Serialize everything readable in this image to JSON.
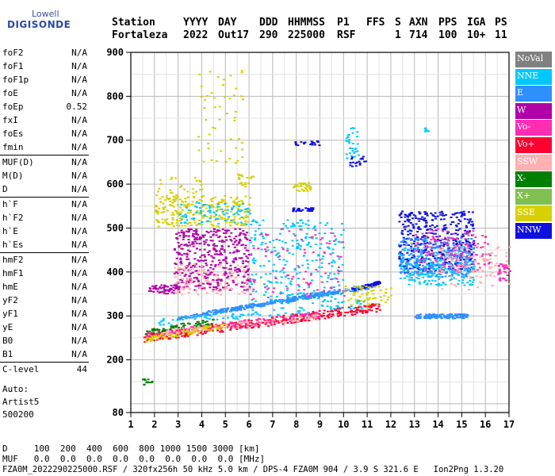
{
  "logo": {
    "top": "Lowell",
    "main": "DIGISONDE"
  },
  "header": {
    "labels": [
      "Station",
      "YYYY",
      "DAY",
      "DDD",
      "HHMMSS",
      "P1",
      "FFS",
      "S",
      "AXN",
      "PPS",
      "IGA",
      "PS"
    ],
    "values": [
      "Fortaleza",
      "2022",
      "Out17",
      "290",
      "225000",
      "RSF",
      "",
      "1",
      "714",
      "100",
      "10+",
      "11"
    ]
  },
  "params": [
    {
      "group": [
        {
          "name": "foF2",
          "value": "N/A"
        },
        {
          "name": "foF1",
          "value": "N/A"
        },
        {
          "name": "foF1p",
          "value": "N/A"
        },
        {
          "name": "foE",
          "value": "N/A"
        },
        {
          "name": "foEp",
          "value": "0.52"
        },
        {
          "name": "fxI",
          "value": "N/A"
        },
        {
          "name": "foEs",
          "value": "N/A"
        },
        {
          "name": "fmin",
          "value": "N/A"
        }
      ]
    },
    {
      "group": [
        {
          "name": "MUF(D)",
          "value": "N/A"
        },
        {
          "name": "M(D)",
          "value": "N/A"
        },
        {
          "name": "D",
          "value": "N/A"
        }
      ]
    },
    {
      "group": [
        {
          "name": "h`F",
          "value": "N/A"
        },
        {
          "name": "h`F2",
          "value": "N/A"
        },
        {
          "name": "h`E",
          "value": "N/A"
        },
        {
          "name": "h`Es",
          "value": "N/A"
        }
      ]
    },
    {
      "group": [
        {
          "name": "hmF2",
          "value": "N/A"
        },
        {
          "name": "hmF1",
          "value": "N/A"
        },
        {
          "name": "hmE",
          "value": "N/A"
        },
        {
          "name": "yF2",
          "value": "N/A"
        },
        {
          "name": "yF1",
          "value": "N/A"
        },
        {
          "name": "yE",
          "value": "N/A"
        },
        {
          "name": "B0",
          "value": "N/A"
        },
        {
          "name": "B1",
          "value": "N/A"
        }
      ]
    },
    {
      "group": [
        {
          "name": "C-level",
          "value": "44"
        }
      ]
    }
  ],
  "auto": {
    "line1": "Auto:",
    "line2": "Artist5",
    "line3": "500200"
  },
  "legend": [
    {
      "label": "NoVal",
      "color": "#808080"
    },
    {
      "label": "NNE",
      "color": "#00c8ff"
    },
    {
      "label": "E",
      "color": "#2f8fff"
    },
    {
      "label": "W",
      "color": "#b000a8"
    },
    {
      "label": "Vo-",
      "color": "#ff2db4"
    },
    {
      "label": "Vo+",
      "color": "#ff0030"
    },
    {
      "label": "SSW",
      "color": "#ffb0b0"
    },
    {
      "label": "X-",
      "color": "#008000"
    },
    {
      "label": "X+",
      "color": "#80c050"
    },
    {
      "label": "SSE",
      "color": "#d8d000"
    },
    {
      "label": "NNW",
      "color": "#1010e0"
    }
  ],
  "footer": {
    "line1": "D     100  200  400  600  800 1000 1500 3000 [km]",
    "line2": "MUF   0.0  0.0  0.0  0.0  0.0  0.0  0.0  0.0 [MHz]",
    "line3": "FZA0M_2022290225000.RSF / 320fx256h 50 kHz 5.0 km / DPS-4 FZA0M 904 / 3.9 S 321.6 E   Ion2Png 1.3.20"
  },
  "chart_data": {
    "type": "scatter",
    "xlabel": "",
    "ylabel": "",
    "xlim": [
      1,
      17
    ],
    "ylim": [
      80,
      900
    ],
    "x_ticks": [
      1,
      2,
      3,
      4,
      5,
      6,
      7,
      8,
      9,
      10,
      11,
      12,
      13,
      14,
      15,
      16,
      17
    ],
    "y_ticks": [
      80,
      200,
      300,
      400,
      500,
      600,
      700,
      800,
      900
    ],
    "grid": true,
    "clusters": [
      {
        "series": "E",
        "x": [
          2.9,
          11.2
        ],
        "y": [
          295,
          368
        ],
        "thick": 7,
        "n": 260
      },
      {
        "series": "E",
        "x": [
          4.0,
          11.2
        ],
        "y": [
          308,
          372
        ],
        "thick": 7,
        "n": 200
      },
      {
        "series": "Vo+",
        "x": [
          1.5,
          11.5
        ],
        "y": [
          252,
          322
        ],
        "thick": 20,
        "n": 380
      },
      {
        "series": "Vo-",
        "x": [
          1.5,
          9.0
        ],
        "y": [
          258,
          305
        ],
        "thick": 16,
        "n": 140
      },
      {
        "series": "X-",
        "x": [
          1.6,
          4.5
        ],
        "y": [
          265,
          290
        ],
        "thick": 12,
        "n": 60
      },
      {
        "series": "SSE",
        "x": [
          1.6,
          5.0
        ],
        "y": [
          248,
          280
        ],
        "thick": 12,
        "n": 90
      },
      {
        "series": "SSW",
        "x": [
          2.0,
          9.0
        ],
        "y": [
          262,
          300
        ],
        "thick": 12,
        "n": 80
      },
      {
        "series": "NNW",
        "x": [
          10.3,
          11.5
        ],
        "y": [
          360,
          378
        ],
        "thick": 8,
        "n": 60
      },
      {
        "series": "NNE",
        "x": [
          2.0,
          11.0
        ],
        "y": [
          285,
          330
        ],
        "thick": 20,
        "n": 90
      },
      {
        "series": "W",
        "x": [
          2.8,
          6.0
        ],
        "y": [
          360,
          500
        ],
        "thick": 0,
        "n": 420
      },
      {
        "series": "W",
        "x": [
          1.7,
          3.0
        ],
        "y": [
          352,
          372
        ],
        "thick": 0,
        "n": 60
      },
      {
        "series": "SSW",
        "x": [
          2.8,
          6.0
        ],
        "y": [
          350,
          420
        ],
        "thick": 0,
        "n": 120
      },
      {
        "series": "SSE",
        "x": [
          2.0,
          6.0
        ],
        "y": [
          505,
          575
        ],
        "thick": 0,
        "n": 240
      },
      {
        "series": "NNE",
        "x": [
          3.0,
          6.0
        ],
        "y": [
          510,
          560
        ],
        "thick": 0,
        "n": 80
      },
      {
        "series": "SSE",
        "x": [
          7.8,
          8.6
        ],
        "y": [
          585,
          605
        ],
        "thick": 0,
        "n": 30
      },
      {
        "series": "NNW",
        "x": [
          7.8,
          8.7
        ],
        "y": [
          540,
          548
        ],
        "thick": 0,
        "n": 30
      },
      {
        "series": "NNE",
        "x": [
          6.0,
          10.0
        ],
        "y": [
          330,
          520
        ],
        "thick": 0,
        "n": 260
      },
      {
        "series": "Vo-",
        "x": [
          6.0,
          10.0
        ],
        "y": [
          340,
          500
        ],
        "thick": 0,
        "n": 90
      },
      {
        "series": "NNW",
        "x": [
          12.3,
          15.5
        ],
        "y": [
          400,
          540
        ],
        "thick": 0,
        "n": 420
      },
      {
        "series": "E",
        "x": [
          12.3,
          15.5
        ],
        "y": [
          390,
          480
        ],
        "thick": 0,
        "n": 260
      },
      {
        "series": "NNE",
        "x": [
          12.3,
          15.5
        ],
        "y": [
          370,
          460
        ],
        "thick": 0,
        "n": 200
      },
      {
        "series": "Vo-",
        "x": [
          13.0,
          16.2
        ],
        "y": [
          400,
          500
        ],
        "thick": 0,
        "n": 140
      },
      {
        "series": "SSW",
        "x": [
          14.0,
          17.0
        ],
        "y": [
          360,
          460
        ],
        "thick": 0,
        "n": 100
      },
      {
        "series": "E",
        "x": [
          13.0,
          15.2
        ],
        "y": [
          296,
          306
        ],
        "thick": 0,
        "n": 140
      },
      {
        "series": "Vo-",
        "x": [
          16.5,
          17.0
        ],
        "y": [
          380,
          420
        ],
        "thick": 0,
        "n": 30
      },
      {
        "series": "SSE",
        "x": [
          10.0,
          12.0
        ],
        "y": [
          320,
          370
        ],
        "thick": 0,
        "n": 60
      },
      {
        "series": "NNE",
        "x": [
          10.0,
          10.6
        ],
        "y": [
          660,
          730
        ],
        "thick": 0,
        "n": 30
      },
      {
        "series": "NNW",
        "x": [
          10.2,
          10.9
        ],
        "y": [
          640,
          665
        ],
        "thick": 0,
        "n": 20
      },
      {
        "series": "NNW",
        "x": [
          7.9,
          9.0
        ],
        "y": [
          690,
          700
        ],
        "thick": 0,
        "n": 20
      },
      {
        "series": "SSE",
        "x": [
          3.8,
          5.7
        ],
        "y": [
          650,
          860
        ],
        "thick": 0,
        "n": 50
      },
      {
        "series": "NNE",
        "x": [
          13.4,
          13.6
        ],
        "y": [
          720,
          730
        ],
        "thick": 0,
        "n": 8
      },
      {
        "series": "X-",
        "x": [
          1.4,
          1.9
        ],
        "y": [
          145,
          158
        ],
        "thick": 0,
        "n": 14
      },
      {
        "series": "SSE",
        "x": [
          2.0,
          4.0
        ],
        "y": [
          560,
          620
        ],
        "thick": 0,
        "n": 40
      },
      {
        "series": "SSE",
        "x": [
          5.5,
          6.2
        ],
        "y": [
          595,
          625
        ],
        "thick": 0,
        "n": 20
      }
    ]
  }
}
